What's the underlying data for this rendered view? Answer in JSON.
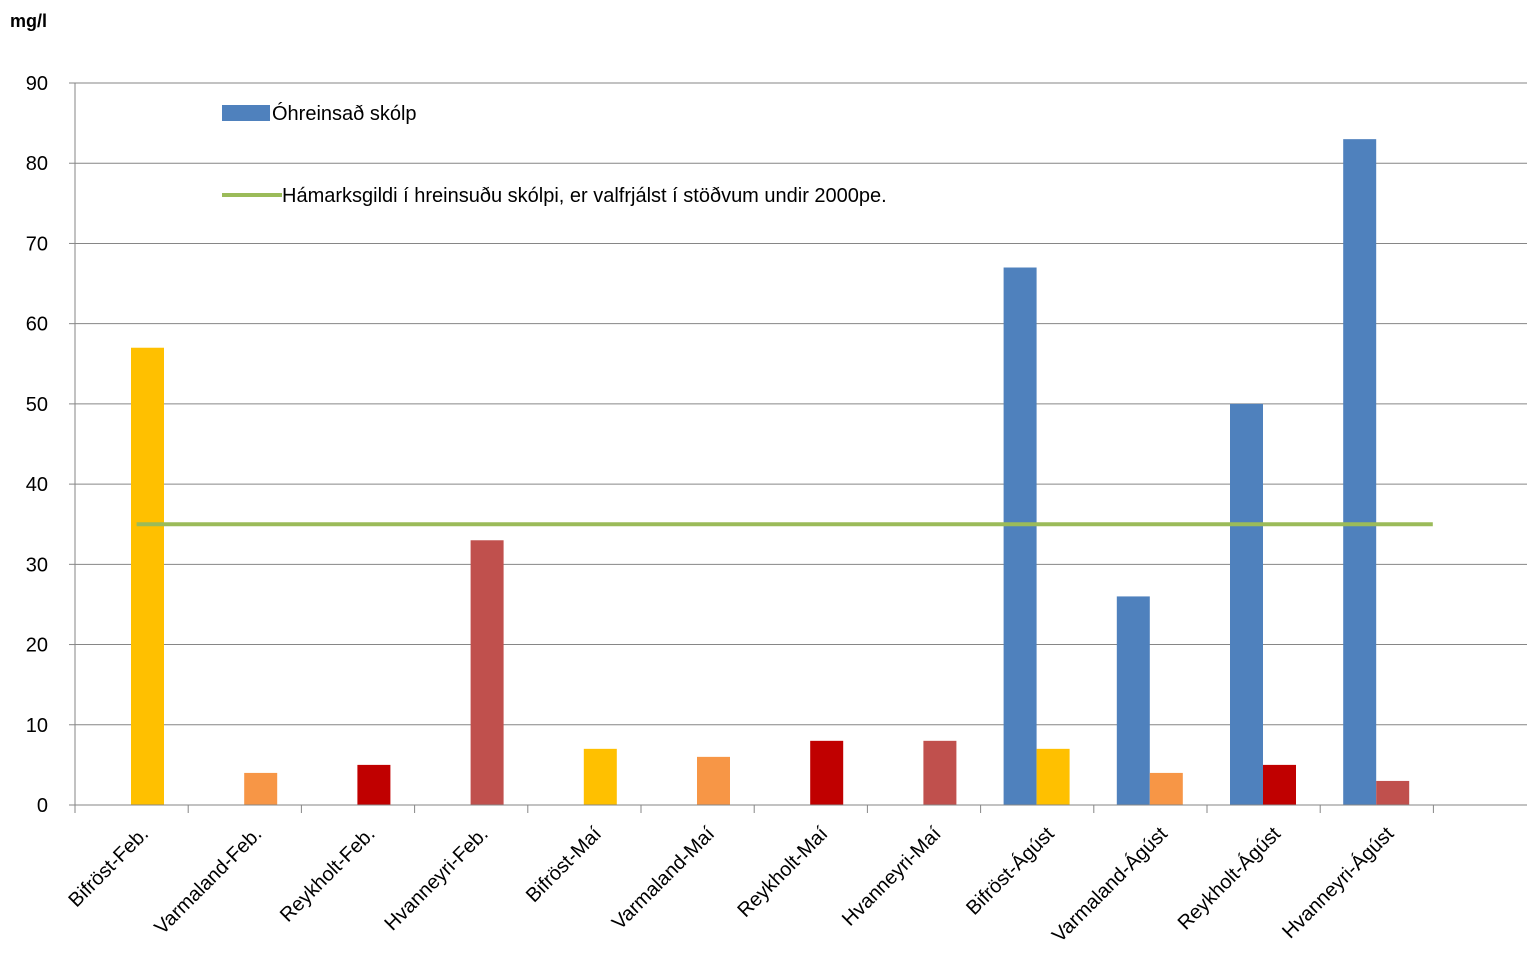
{
  "chart_data": {
    "type": "bar",
    "title": "",
    "unit_label": "mg/l",
    "xlabel": "",
    "ylabel": "mg/l",
    "ylim": [
      0,
      90
    ],
    "yticks": [
      0,
      10,
      20,
      30,
      40,
      50,
      60,
      70,
      80,
      90
    ],
    "grid": true,
    "legend_position": "top-left",
    "categories": [
      "Bifröst-Feb.",
      "Varmaland-Feb.",
      "Reykholt-Feb.",
      "Hvanneyri-Feb.",
      "Bifröst-Maí",
      "Varmaland-Maí",
      "Reykholt-Maí",
      "Hvanneyri-Maí",
      "Bifröst-Ágúst",
      "Varmaland-Ágúst",
      "Reykholt-Ágúst",
      "Hvanneyri-Ágúst"
    ],
    "series": [
      {
        "name": "Óhreinsað skólp",
        "type": "bar",
        "color": "#4F81BD",
        "values": [
          null,
          null,
          null,
          null,
          null,
          null,
          null,
          null,
          67,
          26,
          50,
          83
        ]
      },
      {
        "type": "bar",
        "color_by_category": [
          "#FFC000",
          "#F79646",
          "#C00000",
          "#C0504D",
          "#FFC000",
          "#F79646",
          "#C00000",
          "#C0504D",
          "#FFC000",
          "#F79646",
          "#C00000",
          "#C0504D"
        ],
        "values": [
          57,
          4,
          5,
          33,
          7,
          6,
          8,
          8,
          7,
          4,
          5,
          3
        ]
      },
      {
        "name": "Hámarksgildi í hreinsuðu skólpi, er valfrjálst í stöðvum undir 2000pe.",
        "type": "line",
        "color": "#9BBB59",
        "values": [
          35,
          35,
          35,
          35,
          35,
          35,
          35,
          35,
          35,
          35,
          35,
          35
        ]
      }
    ]
  }
}
